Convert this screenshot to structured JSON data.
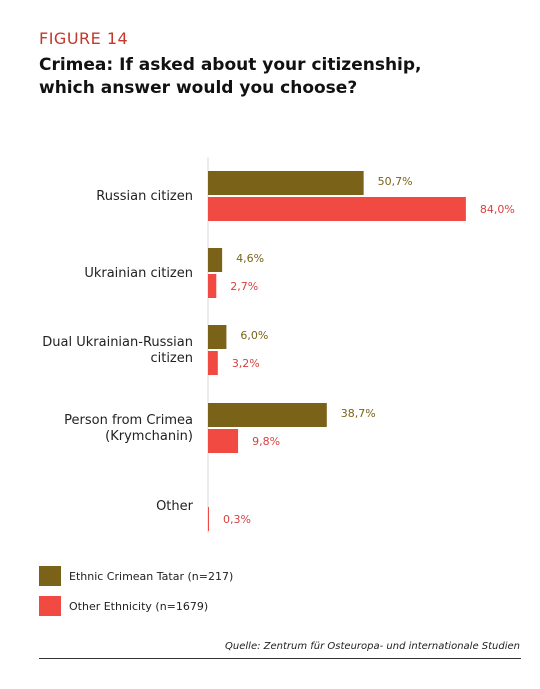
{
  "figure_label": "FIGURE 14",
  "title_lines": [
    "Crimea:  If asked about your citizenship,",
    "which answer would you choose?"
  ],
  "source": "Quelle: Zentrum für Osteuropa- und internationale Studien",
  "colors": {
    "tatar": "#7a6219",
    "other": "#f04a42",
    "tatar_label": "#7a6219",
    "other_label": "#d94040"
  },
  "chart_data": {
    "type": "bar",
    "orientation": "horizontal",
    "categories": [
      [
        "Russian citizen"
      ],
      [
        "Ukrainian citizen"
      ],
      [
        "Dual Ukrainian-Russian",
        "citizen"
      ],
      [
        "Person from Crimea",
        "(Krymchanin)"
      ],
      [
        "Other"
      ]
    ],
    "series": [
      {
        "name": "Ethnic Crimean Tatar (n=217)",
        "values": [
          50.7,
          4.6,
          6.0,
          38.7,
          0
        ],
        "labels": [
          "50,7%",
          "4,6%",
          "6,0%",
          "38,7%",
          ""
        ]
      },
      {
        "name": "Other Ethnicity (n=1679)",
        "values": [
          84.0,
          2.7,
          3.2,
          9.8,
          0.3
        ],
        "labels": [
          "84,0%",
          "2,7%",
          "3,2%",
          "9,8%",
          "0,3%"
        ]
      }
    ],
    "xlim": [
      0,
      100
    ],
    "grid": false,
    "legend": "bottom-left"
  }
}
